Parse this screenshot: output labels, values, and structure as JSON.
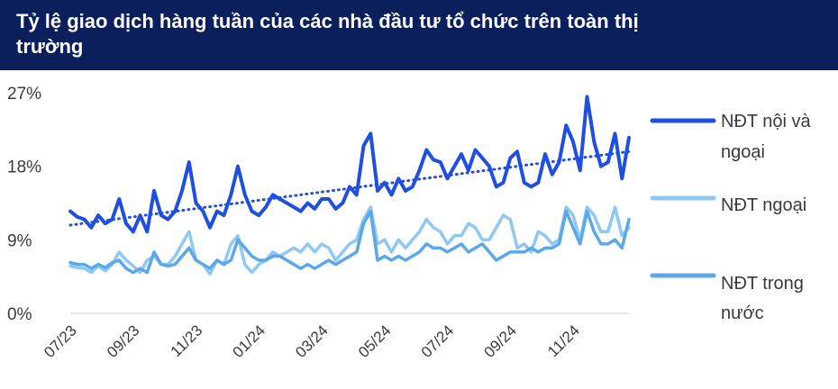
{
  "header": {
    "title_line1": "Tỷ lệ giao dịch hàng tuần của các nhà đầu tư tổ chức trên toàn thị",
    "title_line2": "trường"
  },
  "chart_data": {
    "type": "line",
    "title": "Tỷ lệ giao dịch hàng tuần của các nhà đầu tư tổ chức trên toàn thị trường",
    "xlabel": "",
    "ylabel": "",
    "ylim": [
      0,
      27
    ],
    "yticks": [
      "0%",
      "9%",
      "18%",
      "27%"
    ],
    "ytick_values": [
      0,
      9,
      18,
      27
    ],
    "xticks": [
      "07/23",
      "09/23",
      "11/23",
      "01/24",
      "03/24",
      "05/24",
      "07/24",
      "09/24",
      "11/24"
    ],
    "xtick_weeks": [
      0,
      9,
      18,
      27,
      36,
      45,
      54,
      63,
      72
    ],
    "grid": false,
    "legend_position": "right",
    "series": [
      {
        "name": "NĐT nội và ngoại",
        "color": "#1f4fe0",
        "values": [
          12.5,
          11.8,
          11.5,
          10.5,
          12.0,
          11.0,
          11.5,
          14.0,
          11.0,
          10.0,
          12.0,
          10.0,
          15.0,
          12.0,
          11.5,
          12.5,
          15.0,
          18.5,
          13.5,
          12.5,
          10.5,
          12.5,
          12.0,
          14.5,
          18.0,
          14.5,
          12.5,
          12.0,
          13.0,
          14.5,
          14.0,
          13.5,
          13.0,
          12.5,
          13.5,
          12.8,
          14.0,
          14.0,
          12.8,
          13.5,
          15.5,
          14.5,
          20.5,
          22.0,
          15.0,
          16.0,
          14.5,
          16.5,
          15.0,
          15.5,
          17.5,
          20.0,
          18.8,
          18.5,
          16.5,
          18.0,
          19.5,
          17.5,
          20.0,
          19.0,
          18.0,
          15.5,
          16.0,
          19.0,
          19.8,
          16.0,
          15.5,
          16.0,
          19.5,
          17.0,
          18.5,
          23.0,
          21.0,
          17.5,
          26.5,
          21.0,
          18.0,
          18.5,
          22.0,
          16.5,
          21.5
        ]
      },
      {
        "name": "NĐT ngoại",
        "color": "#8fc8f2",
        "values": [
          5.8,
          5.6,
          5.5,
          5.0,
          5.8,
          5.2,
          6.0,
          7.5,
          6.5,
          5.8,
          5.0,
          6.5,
          7.0,
          6.0,
          6.0,
          7.0,
          8.5,
          10.0,
          6.5,
          6.0,
          4.8,
          6.5,
          6.0,
          8.5,
          9.5,
          6.0,
          5.0,
          6.0,
          6.5,
          7.5,
          7.0,
          7.5,
          8.0,
          7.5,
          8.5,
          7.5,
          8.5,
          8.0,
          6.5,
          7.5,
          8.5,
          9.0,
          11.5,
          13.0,
          8.5,
          9.0,
          7.5,
          9.0,
          8.0,
          9.0,
          10.0,
          11.5,
          10.5,
          10.0,
          8.5,
          9.5,
          9.5,
          11.0,
          10.5,
          9.0,
          9.0,
          10.5,
          12.0,
          11.5,
          8.0,
          8.5,
          7.5,
          10.0,
          9.5,
          8.5,
          9.0,
          13.0,
          12.0,
          9.0,
          13.0,
          12.0,
          10.0,
          10.0,
          13.0,
          9.5,
          10.5
        ]
      },
      {
        "name": "NĐT trong nước",
        "color": "#5aa8ea",
        "values": [
          6.2,
          6.0,
          6.0,
          5.5,
          6.0,
          5.6,
          6.2,
          6.5,
          5.5,
          5.0,
          5.5,
          5.0,
          7.5,
          6.0,
          5.8,
          6.0,
          7.0,
          8.0,
          6.5,
          6.0,
          5.5,
          6.5,
          6.0,
          6.5,
          9.0,
          8.0,
          7.0,
          6.5,
          6.5,
          7.0,
          7.0,
          6.5,
          6.0,
          5.5,
          6.0,
          5.5,
          6.0,
          6.5,
          6.0,
          6.5,
          7.0,
          7.5,
          11.0,
          12.5,
          6.5,
          7.0,
          6.5,
          7.0,
          6.5,
          7.0,
          7.5,
          8.5,
          8.0,
          8.0,
          7.5,
          8.0,
          8.5,
          7.5,
          8.0,
          8.5,
          7.5,
          6.5,
          7.0,
          7.5,
          7.5,
          7.5,
          8.0,
          7.5,
          8.0,
          8.0,
          8.5,
          12.5,
          10.5,
          8.5,
          12.5,
          10.0,
          8.5,
          8.5,
          9.0,
          8.0,
          11.5
        ]
      }
    ],
    "trendline": {
      "of_series": "NĐT nội và ngoại",
      "color": "#1f4fe0",
      "style": "dotted",
      "start_value": 10.8,
      "end_value": 19.8
    }
  }
}
